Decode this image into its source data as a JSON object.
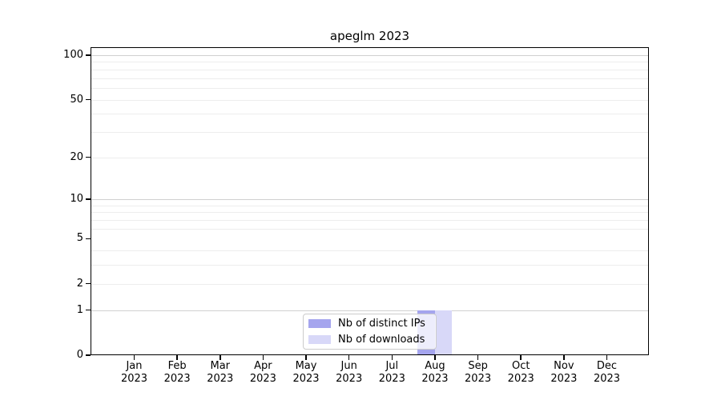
{
  "chart_data": {
    "type": "bar",
    "title": "apeglm 2023",
    "categories": [
      "Jan 2023",
      "Feb 2023",
      "Mar 2023",
      "Apr 2023",
      "May 2023",
      "Jun 2023",
      "Jul 2023",
      "Aug 2023",
      "Sep 2023",
      "Oct 2023",
      "Nov 2023",
      "Dec 2023"
    ],
    "series": [
      {
        "name": "Nb of distinct IPs",
        "color": "#a5a5ee",
        "values": [
          0,
          0,
          0,
          0,
          0,
          0,
          0,
          1,
          0,
          0,
          0,
          0
        ]
      },
      {
        "name": "Nb of downloads",
        "color": "#d8d8f8",
        "values": [
          0,
          0,
          0,
          0,
          0,
          0,
          0,
          1,
          0,
          0,
          0,
          0
        ]
      }
    ],
    "xlabel": "",
    "ylabel": "",
    "yscale": "log1p",
    "ylim": [
      0,
      115
    ],
    "yticks": [
      0,
      1,
      2,
      5,
      10,
      20,
      50,
      100
    ],
    "ytick_labels": [
      "0",
      "1",
      "2",
      "5",
      "10",
      "20",
      "50",
      "100"
    ],
    "major_gridlines": [
      1,
      10,
      100
    ],
    "minor_gridlines": [
      2,
      3,
      4,
      6,
      7,
      8,
      9,
      20,
      30,
      40,
      50,
      60,
      70,
      80,
      90
    ],
    "grid": "horizontal",
    "legend_position": "lower center"
  },
  "colors": {
    "axis": "#000000",
    "major_grid": "#d0d0d0",
    "minor_grid": "#ededed",
    "legend_border": "#cccccc",
    "background": "#ffffff"
  }
}
